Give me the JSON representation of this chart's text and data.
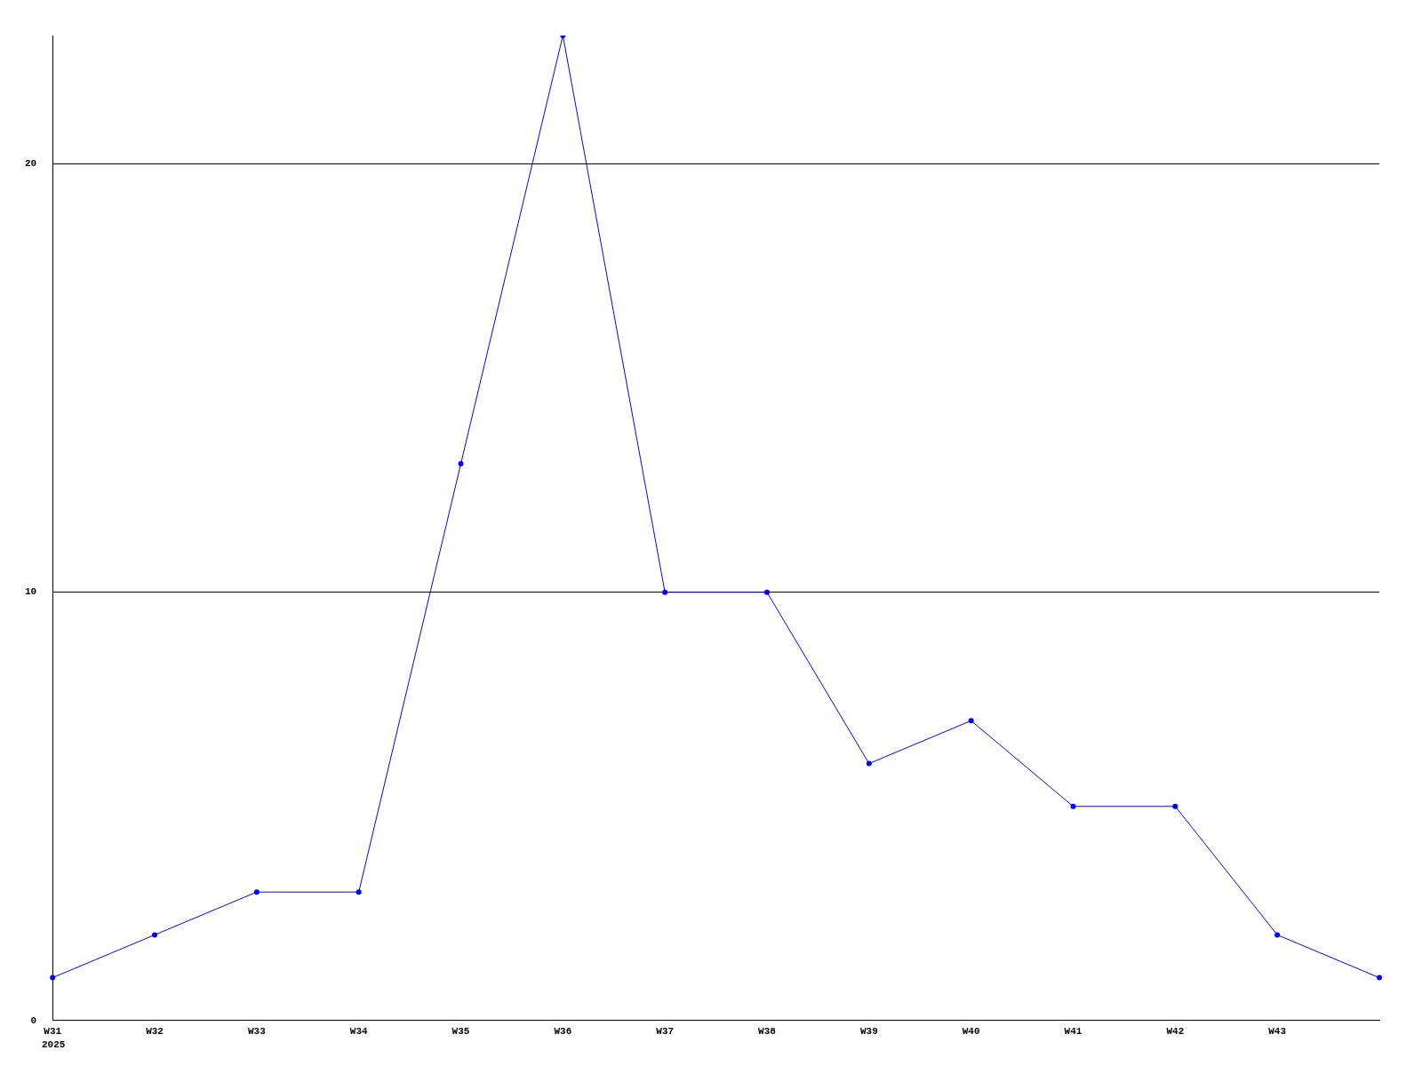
{
  "chart_data": {
    "type": "line",
    "categories": [
      "W31",
      "W32",
      "W33",
      "W34",
      "W35",
      "W36",
      "W37",
      "W38",
      "W39",
      "W40",
      "W41",
      "W42",
      "W43",
      null
    ],
    "series": [
      {
        "color": "#0000ff",
        "values": [
          1,
          2,
          3,
          3,
          13,
          23,
          10,
          10,
          6,
          7,
          5,
          5,
          2,
          1
        ]
      }
    ],
    "ylim": [
      0,
      23
    ],
    "yticks": [
      0,
      10,
      20
    ],
    "grid": "y",
    "marker": "circle",
    "line_style": "solid",
    "legend": false,
    "annotations": [
      "2025"
    ]
  }
}
